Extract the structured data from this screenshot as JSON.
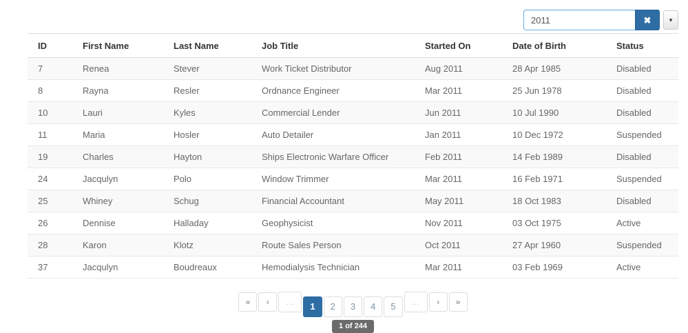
{
  "search": {
    "value": "2011",
    "clear_icon": "✖",
    "caret_icon": "▾"
  },
  "table": {
    "columns": [
      "ID",
      "First Name",
      "Last Name",
      "Job Title",
      "Started On",
      "Date of Birth",
      "Status"
    ],
    "rows": [
      [
        "7",
        "Renea",
        "Stever",
        "Work Ticket Distributor",
        "Aug 2011",
        "28 Apr 1985",
        "Disabled"
      ],
      [
        "8",
        "Rayna",
        "Resler",
        "Ordnance Engineer",
        "Mar 2011",
        "25 Jun 1978",
        "Disabled"
      ],
      [
        "10",
        "Lauri",
        "Kyles",
        "Commercial Lender",
        "Jun 2011",
        "10 Jul 1990",
        "Disabled"
      ],
      [
        "11",
        "Maria",
        "Hosler",
        "Auto Detailer",
        "Jan 2011",
        "10 Dec 1972",
        "Suspended"
      ],
      [
        "19",
        "Charles",
        "Hayton",
        "Ships Electronic Warfare Officer",
        "Feb 2011",
        "14 Feb 1989",
        "Disabled"
      ],
      [
        "24",
        "Jacqulyn",
        "Polo",
        "Window Trimmer",
        "Mar 2011",
        "16 Feb 1971",
        "Suspended"
      ],
      [
        "25",
        "Whiney",
        "Schug",
        "Financial Accountant",
        "May 2011",
        "18 Oct 1983",
        "Disabled"
      ],
      [
        "26",
        "Dennise",
        "Halladay",
        "Geophysicist",
        "Nov 2011",
        "03 Oct 1975",
        "Active"
      ],
      [
        "28",
        "Karon",
        "Klotz",
        "Route Sales Person",
        "Oct 2011",
        "27 Apr 1960",
        "Suspended"
      ],
      [
        "37",
        "Jacqulyn",
        "Boudreaux",
        "Hemodialysis Technician",
        "Mar 2011",
        "03 Feb 1969",
        "Active"
      ]
    ]
  },
  "pagination": {
    "items": [
      {
        "name": "first-page-button",
        "label": "«",
        "kind": "nav"
      },
      {
        "name": "prev-page-button",
        "label": "‹",
        "kind": "nav"
      },
      {
        "name": "ellipsis-left",
        "label": "…",
        "kind": "ellipsis"
      },
      {
        "name": "page-1-button",
        "label": "1",
        "kind": "page",
        "active": true
      },
      {
        "name": "page-2-button",
        "label": "2",
        "kind": "page"
      },
      {
        "name": "page-3-button",
        "label": "3",
        "kind": "page"
      },
      {
        "name": "page-4-button",
        "label": "4",
        "kind": "page"
      },
      {
        "name": "page-5-button",
        "label": "5",
        "kind": "page"
      },
      {
        "name": "ellipsis-right",
        "label": "…",
        "kind": "ellipsis"
      },
      {
        "name": "next-page-button",
        "label": "›",
        "kind": "nav"
      },
      {
        "name": "last-page-button",
        "label": "»",
        "kind": "nav"
      }
    ],
    "tooltip": "1 of 244"
  },
  "colors": {
    "accent": "#2e6da4",
    "input_focus_border": "#66afe9",
    "row_stripe": "#f9f9f9",
    "table_border": "#dddddd",
    "tooltip_bg": "#6b6b6b",
    "page_link": "#7a95ab",
    "nav_link": "#777777"
  }
}
